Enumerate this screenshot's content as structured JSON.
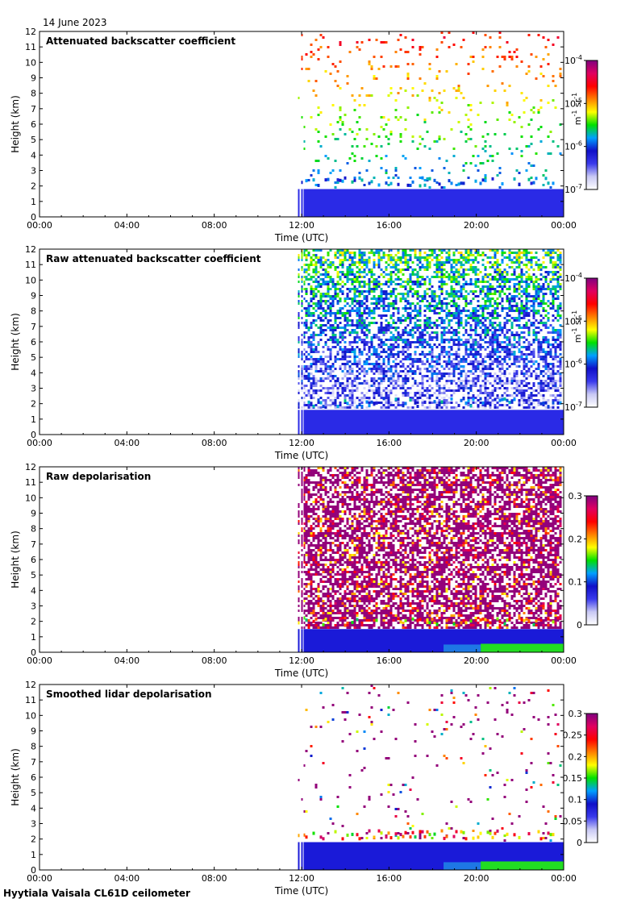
{
  "date": "14 June 2023",
  "footer": "Hyytiala Vaisala CL61D ceilometer",
  "colors": {
    "background": "#ffffff",
    "axis": "#000000",
    "colormap": [
      "#ffffff",
      "#c8c8f4",
      "#3a3aec",
      "#1010c8",
      "#00a0ff",
      "#00e000",
      "#ffff00",
      "#ff8000",
      "#ff0000",
      "#e00060",
      "#800080"
    ]
  },
  "chart_data": [
    {
      "type": "heatmap",
      "title": "Attenuated backscatter coefficient",
      "xlabel": "Time (UTC)",
      "ylabel": "Height (km)",
      "x_ticks": [
        "00:00",
        "04:00",
        "08:00",
        "12:00",
        "16:00",
        "20:00",
        "00:00"
      ],
      "y_ticks": [
        0,
        1,
        2,
        3,
        4,
        5,
        6,
        7,
        8,
        9,
        10,
        11,
        12
      ],
      "ylim": [
        0,
        12
      ],
      "colorbar": {
        "scale": "log",
        "range": [
          "10^-7",
          "10^-4"
        ],
        "ticks": [
          {
            "base": "10",
            "exp": "-4"
          },
          {
            "base": "10",
            "exp": "-5"
          },
          {
            "base": "10",
            "exp": "-6"
          },
          {
            "base": "10",
            "exp": "-7"
          }
        ],
        "unit": "m-1 sr-1"
      },
      "data_start_time": "11:50",
      "boundary_layer_height_km": 1.8
    },
    {
      "type": "heatmap",
      "title": "Raw attenuated backscatter coefficient",
      "xlabel": "Time (UTC)",
      "ylabel": "Height (km)",
      "x_ticks": [
        "00:00",
        "04:00",
        "08:00",
        "12:00",
        "16:00",
        "20:00",
        "00:00"
      ],
      "y_ticks": [
        0,
        1,
        2,
        3,
        4,
        5,
        6,
        7,
        8,
        9,
        10,
        11,
        12
      ],
      "ylim": [
        0,
        12
      ],
      "colorbar": {
        "scale": "log",
        "range": [
          "10^-7",
          "10^-4"
        ],
        "ticks": [
          {
            "base": "10",
            "exp": "-4"
          },
          {
            "base": "10",
            "exp": "-5"
          },
          {
            "base": "10",
            "exp": "-6"
          },
          {
            "base": "10",
            "exp": "-7"
          }
        ],
        "unit": "m-1 sr-1"
      },
      "data_start_time": "11:50",
      "boundary_layer_height_km": 1.6
    },
    {
      "type": "heatmap",
      "title": "Raw depolarisation",
      "xlabel": "Time (UTC)",
      "ylabel": "Height (km)",
      "x_ticks": [
        "00:00",
        "04:00",
        "08:00",
        "12:00",
        "16:00",
        "20:00",
        "00:00"
      ],
      "y_ticks": [
        0,
        1,
        2,
        3,
        4,
        5,
        6,
        7,
        8,
        9,
        10,
        11,
        12
      ],
      "ylim": [
        0,
        12
      ],
      "colorbar": {
        "scale": "linear",
        "range": [
          0,
          0.3
        ],
        "ticks": [
          "0.3",
          "0.2",
          "0.1",
          "0"
        ]
      },
      "data_start_time": "11:50",
      "boundary_layer_height_km": 1.5
    },
    {
      "type": "heatmap",
      "title": "Smoothed lidar depolarisation",
      "xlabel": "Time (UTC)",
      "ylabel": "Height (km)",
      "x_ticks": [
        "00:00",
        "04:00",
        "08:00",
        "12:00",
        "16:00",
        "20:00",
        "00:00"
      ],
      "y_ticks": [
        0,
        1,
        2,
        3,
        4,
        5,
        6,
        7,
        8,
        9,
        10,
        11,
        12
      ],
      "ylim": [
        0,
        12
      ],
      "colorbar": {
        "scale": "linear",
        "range": [
          0,
          0.3
        ],
        "ticks": [
          "0.3",
          "0.25",
          "0.2",
          "0.15",
          "0.1",
          "0.05",
          "0"
        ]
      },
      "data_start_time": "11:50",
      "boundary_layer_height_km": 1.8
    }
  ]
}
